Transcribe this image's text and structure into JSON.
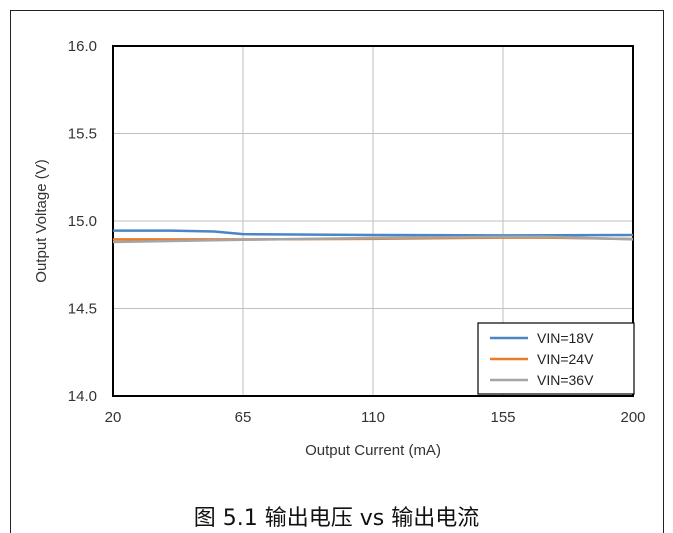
{
  "chart_data": {
    "type": "line",
    "xlabel": "Output Current (mA)",
    "ylabel": "Output Voltage (V)",
    "xlim": [
      20,
      200
    ],
    "ylim": [
      14.0,
      16.0
    ],
    "x_ticks": [
      "20",
      "65",
      "110",
      "155",
      "200"
    ],
    "y_ticks": [
      "16.0",
      "15.5",
      "15.0",
      "14.5",
      "14.0"
    ],
    "grid": true,
    "legend_position": "bottom-right",
    "series": [
      {
        "name": "VIN=18V",
        "color": "#4A86C5",
        "points": [
          [
            20,
            14.945
          ],
          [
            40,
            14.945
          ],
          [
            55,
            14.94
          ],
          [
            65,
            14.925
          ],
          [
            110,
            14.92
          ],
          [
            155,
            14.918
          ],
          [
            200,
            14.92
          ]
        ]
      },
      {
        "name": "VIN=24V",
        "color": "#E87C2B",
        "points": [
          [
            20,
            14.895
          ],
          [
            65,
            14.895
          ],
          [
            110,
            14.898
          ],
          [
            155,
            14.905
          ],
          [
            170,
            14.905
          ],
          [
            200,
            14.897
          ]
        ]
      },
      {
        "name": "VIN=36V",
        "color": "#A5A5A5",
        "points": [
          [
            20,
            14.88
          ],
          [
            65,
            14.893
          ],
          [
            110,
            14.903
          ],
          [
            155,
            14.91
          ],
          [
            170,
            14.91
          ],
          [
            200,
            14.895
          ]
        ]
      }
    ]
  },
  "caption": "图 5.1 输出电压 vs 输出电流"
}
